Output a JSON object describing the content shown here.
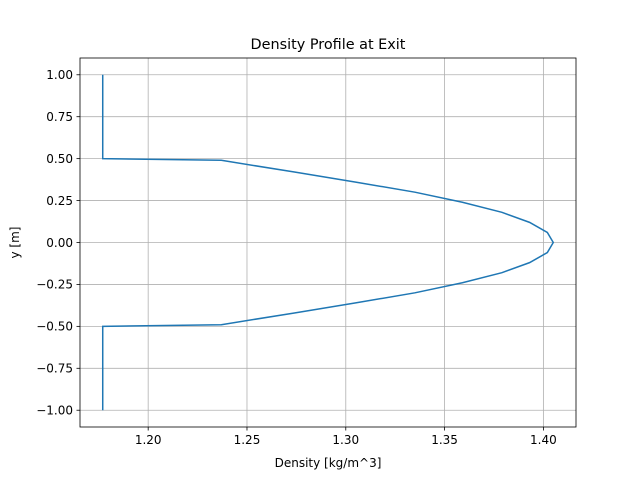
{
  "chart_data": {
    "type": "line",
    "title": "Density Profile at Exit",
    "xlabel": "Density [kg/m^3]",
    "ylabel": "y [m]",
    "xlim": [
      1.1655,
      1.4165
    ],
    "ylim": [
      -1.1,
      1.1
    ],
    "grid": true,
    "legend": "none",
    "x_ticks": [
      1.2,
      1.25,
      1.3,
      1.35,
      1.4
    ],
    "x_tick_labels": [
      "1.20",
      "1.25",
      "1.30",
      "1.35",
      "1.40"
    ],
    "y_ticks": [
      1.0,
      0.75,
      0.5,
      0.25,
      0.0,
      -0.25,
      -0.5,
      -0.75,
      -1.0
    ],
    "y_tick_labels": [
      "1.00",
      "0.75",
      "0.50",
      "0.25",
      "0.00",
      "−0.25",
      "−0.50",
      "−0.75",
      "−1.00"
    ],
    "series": [
      {
        "color": "#1f77b4",
        "points": [
          [
            1.177,
            -1.0
          ],
          [
            1.177,
            -0.5
          ],
          [
            1.237,
            -0.49
          ],
          [
            1.274,
            -0.42
          ],
          [
            1.305,
            -0.36
          ],
          [
            1.335,
            -0.3
          ],
          [
            1.359,
            -0.24
          ],
          [
            1.379,
            -0.18
          ],
          [
            1.393,
            -0.12
          ],
          [
            1.402,
            -0.06
          ],
          [
            1.405,
            0.0
          ],
          [
            1.402,
            0.06
          ],
          [
            1.393,
            0.12
          ],
          [
            1.379,
            0.18
          ],
          [
            1.359,
            0.24
          ],
          [
            1.335,
            0.3
          ],
          [
            1.305,
            0.36
          ],
          [
            1.274,
            0.42
          ],
          [
            1.237,
            0.49
          ],
          [
            1.177,
            0.5
          ],
          [
            1.177,
            1.0
          ]
        ]
      }
    ]
  }
}
